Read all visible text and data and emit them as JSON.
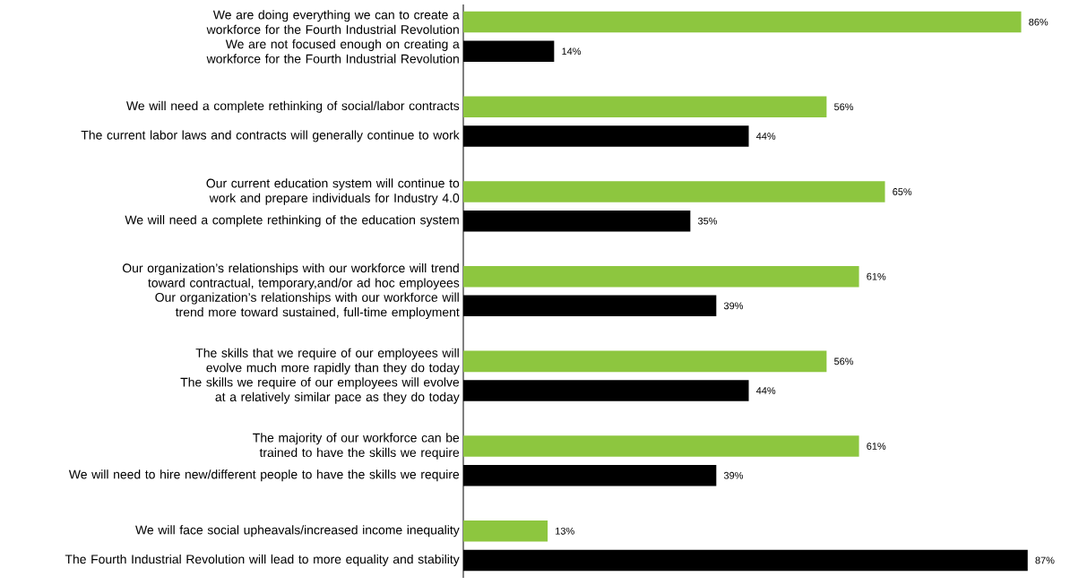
{
  "chart_data": {
    "type": "bar",
    "orientation": "horizontal",
    "categories": [
      "We are doing everything we can to create a workforce for the Fourth Industrial Revolution",
      "We are not focused enough on creating a workforce for the Fourth Industrial Revolution",
      "We will need a complete rethinking of social/labor contracts",
      "The current labor laws and contracts will generally continue to work",
      "Our current education system will continue to work and prepare individuals for Industry 4.0",
      "We will need a complete rethinking of the education system",
      "Our organization’s relationships with our workforce will trend toward contractual, temporary,and/or ad hoc employees",
      "Our organization’s relationships with our workforce will trend more toward sustained, full-time employment",
      "The skills that we require of our employees will evolve much more rapidly than they do today",
      "The skills we require of our employees will evolve at a relatively similar pace as they do today",
      "The majority of our workforce can be trained to have the skills we require",
      "We will need to hire new/different people to have the skills we require",
      "We will face social upheavals/increased income inequality",
      "The Fourth Industrial Revolution will lead to more equality and stability"
    ],
    "values": [
      86,
      14,
      56,
      44,
      65,
      35,
      61,
      39,
      56,
      44,
      61,
      39,
      13,
      87
    ],
    "value_labels": [
      "86%",
      "14%",
      "56%",
      "44%",
      "65%",
      "35%",
      "61%",
      "39%",
      "56%",
      "44%",
      "61%",
      "39%",
      "13%",
      "87%"
    ],
    "colors": [
      "#8dc63f",
      "#000000",
      "#8dc63f",
      "#000000",
      "#8dc63f",
      "#000000",
      "#8dc63f",
      "#000000",
      "#8dc63f",
      "#000000",
      "#8dc63f",
      "#000000",
      "#8dc63f",
      "#000000"
    ]
  }
}
